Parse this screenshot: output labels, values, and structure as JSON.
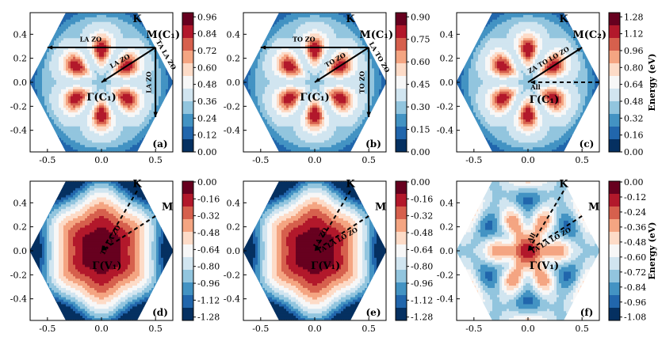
{
  "figure": {
    "description_label": "Six hexagonal Brillouin-zone energy contour panels"
  },
  "colors": {
    "red_dark": "#67001f",
    "red": "#b2182b",
    "red_mid": "#d6604d",
    "red_light": "#f4a582",
    "pale_red": "#fddbc7",
    "white": "#f7f7f7",
    "pale_blue": "#d1e5f0",
    "blue_light": "#92c5de",
    "blue_mid": "#4393c3",
    "blue": "#2166ac",
    "blue_dark": "#053061"
  },
  "chart_data": [
    {
      "type": "heatmap",
      "panel": "(a)",
      "pattern": "six_lobes",
      "cmap": "low_blue_high_red",
      "xlim": [
        -0.66,
        0.66
      ],
      "ylim": [
        -0.58,
        0.58
      ],
      "xticks": [
        "-0.5",
        "0.0",
        "0.5"
      ],
      "xtick_values": [
        -0.5,
        0.0,
        0.5
      ],
      "yticks": [
        "-0.4",
        "-0.2",
        "0.0",
        "0.2",
        "0.4"
      ],
      "ytick_values": [
        -0.4,
        -0.2,
        0.0,
        0.2,
        0.4
      ],
      "colorbar": {
        "ticks": [
          "0.00",
          "0.12",
          "0.24",
          "0.36",
          "0.48",
          "0.60",
          "0.72",
          "0.84",
          "0.96"
        ],
        "label": ""
      },
      "point_labels": [
        {
          "text": "K",
          "x": 0.33,
          "y": 0.5
        },
        {
          "text": "M(C₁)",
          "x": 0.57,
          "y": 0.37
        },
        {
          "text": "Γ(C₁)",
          "x": 0.0,
          "y": -0.15
        }
      ],
      "arrows": [
        {
          "x1": 0.5,
          "y1": 0.29,
          "x2": -0.5,
          "y2": 0.29,
          "dashed": false,
          "label": "LA ZO",
          "lx": -0.1,
          "ly": 0.34,
          "rot": 0
        },
        {
          "x1": 0.5,
          "y1": 0.29,
          "x2": 0.0,
          "y2": 0.0,
          "dashed": false,
          "label": "LA ZO",
          "lx": 0.18,
          "ly": 0.16,
          "rot": -30
        },
        {
          "x1": 0.5,
          "y1": 0.29,
          "x2": 0.5,
          "y2": -0.29,
          "dashed": false,
          "label": "LA ZO",
          "lx": 0.46,
          "ly": 0.0,
          "rot": -90
        },
        {
          "x1": 0.5,
          "y1": 0.29,
          "x2": 0.5,
          "y2": 0.29,
          "dashed": false,
          "label": "TA LA ZO",
          "lx": 0.58,
          "ly": 0.22,
          "rot": 60
        }
      ],
      "panel_label": "(a)"
    },
    {
      "type": "heatmap",
      "panel": "(b)",
      "pattern": "six_lobes",
      "cmap": "low_blue_high_red",
      "xlim": [
        -0.66,
        0.66
      ],
      "ylim": [
        -0.58,
        0.58
      ],
      "xticks": [
        "-0.5",
        "0.0",
        "0.5"
      ],
      "xtick_values": [
        -0.5,
        0.0,
        0.5
      ],
      "yticks": [
        "-0.4",
        "-0.2",
        "0.0",
        "0.2",
        "0.4"
      ],
      "ytick_values": [
        -0.4,
        -0.2,
        0.0,
        0.2,
        0.4
      ],
      "colorbar": {
        "ticks": [
          "0.00",
          "0.15",
          "0.30",
          "0.45",
          "0.60",
          "0.75",
          "0.90"
        ],
        "label": ""
      },
      "point_labels": [
        {
          "text": "K",
          "x": 0.33,
          "y": 0.5
        },
        {
          "text": "M(C₁)",
          "x": 0.57,
          "y": 0.37
        },
        {
          "text": "Γ(C₁)",
          "x": 0.0,
          "y": -0.15
        }
      ],
      "arrows": [
        {
          "x1": 0.5,
          "y1": 0.29,
          "x2": -0.5,
          "y2": 0.29,
          "dashed": false,
          "label": "TO ZO",
          "lx": -0.1,
          "ly": 0.34,
          "rot": 0
        },
        {
          "x1": 0.5,
          "y1": 0.29,
          "x2": 0.0,
          "y2": 0.0,
          "dashed": false,
          "label": "TO ZO",
          "lx": 0.2,
          "ly": 0.17,
          "rot": -30
        },
        {
          "x1": 0.5,
          "y1": 0.29,
          "x2": 0.5,
          "y2": -0.29,
          "dashed": false,
          "label": "TO ZO",
          "lx": 0.46,
          "ly": 0.0,
          "rot": -90
        },
        {
          "x1": 0.5,
          "y1": 0.29,
          "x2": 0.5,
          "y2": 0.29,
          "dashed": false,
          "label": "LA TO ZO",
          "lx": 0.58,
          "ly": 0.2,
          "rot": 60
        }
      ],
      "panel_label": "(b)"
    },
    {
      "type": "heatmap",
      "panel": "(c)",
      "pattern": "six_lobes",
      "cmap": "low_blue_high_red",
      "xlim": [
        -0.66,
        0.66
      ],
      "ylim": [
        -0.58,
        0.58
      ],
      "xticks": [
        "-0.5",
        "0.0",
        "0.5"
      ],
      "xtick_values": [
        -0.5,
        0.0,
        0.5
      ],
      "yticks": [
        "-0.4",
        "-0.2",
        "0.0",
        "0.2",
        "0.4"
      ],
      "ytick_values": [
        -0.4,
        -0.2,
        0.0,
        0.2,
        0.4
      ],
      "colorbar": {
        "ticks": [
          "0.00",
          "0.16",
          "0.32",
          "0.48",
          "0.64",
          "0.80",
          "0.96",
          "1.12",
          "1.28"
        ],
        "label": "Energy (eV)"
      },
      "point_labels": [
        {
          "text": "K",
          "x": 0.33,
          "y": 0.5
        },
        {
          "text": "M(C₂)",
          "x": 0.57,
          "y": 0.37
        },
        {
          "text": "Γ(C₁)",
          "x": 0.15,
          "y": -0.17
        },
        {
          "text": "All",
          "x": 0.07,
          "y": -0.06
        }
      ],
      "arrows": [
        {
          "x1": 0.0,
          "y1": 0.0,
          "x2": 0.5,
          "y2": 0.29,
          "dashed": false,
          "label": "ZA TO LO ZO",
          "lx": 0.2,
          "ly": 0.17,
          "rot": -30
        },
        {
          "x1": 0.66,
          "y1": 0.0,
          "x2": 0.02,
          "y2": 0.0,
          "dashed": true,
          "label": "",
          "lx": 0,
          "ly": 0,
          "rot": 0
        }
      ],
      "panel_label": "(c)"
    },
    {
      "type": "heatmap",
      "panel": "(d)",
      "pattern": "center_hex",
      "cmap": "high_red_low_blue",
      "xlim": [
        -0.66,
        0.66
      ],
      "ylim": [
        -0.58,
        0.58
      ],
      "xticks": [
        "-0.5",
        "0.0",
        "0.5"
      ],
      "xtick_values": [
        -0.5,
        0.0,
        0.5
      ],
      "yticks": [
        "-0.4",
        "-0.2",
        "0.0",
        "0.2",
        "0.4"
      ],
      "ytick_values": [
        -0.4,
        -0.2,
        0.0,
        0.2,
        0.4
      ],
      "colorbar": {
        "ticks": [
          "0.00",
          "-0.16",
          "-0.32",
          "-0.48",
          "-0.64",
          "-0.80",
          "-0.96",
          "-1.12",
          "-1.28"
        ],
        "label": ""
      },
      "point_labels": [
        {
          "text": "K",
          "x": 0.33,
          "y": 0.53
        },
        {
          "text": "M",
          "x": 0.61,
          "y": 0.34
        },
        {
          "text": "Γ(V₁)",
          "x": 0.05,
          "y": -0.15
        }
      ],
      "arrows": [
        {
          "x1": 0.33,
          "y1": 0.5,
          "x2": 0.0,
          "y2": 0.0,
          "dashed": true,
          "label": "TA LA ZO",
          "lx": 0.1,
          "ly": 0.08,
          "rot": -60
        },
        {
          "x1": 0.5,
          "y1": 0.29,
          "x2": 0.0,
          "y2": 0.0,
          "dashed": true,
          "label": "",
          "lx": 0,
          "ly": 0,
          "rot": 0
        }
      ],
      "panel_label": "(d)"
    },
    {
      "type": "heatmap",
      "panel": "(e)",
      "pattern": "center_hex",
      "cmap": "high_red_low_blue",
      "xlim": [
        -0.66,
        0.66
      ],
      "ylim": [
        -0.58,
        0.58
      ],
      "xticks": [
        "-0.5",
        "0.0",
        "0.5"
      ],
      "xtick_values": [
        -0.5,
        0.0,
        0.5
      ],
      "yticks": [
        "-0.4",
        "-0.2",
        "0.0",
        "0.2",
        "0.4"
      ],
      "ytick_values": [
        -0.4,
        -0.2,
        0.0,
        0.2,
        0.4
      ],
      "colorbar": {
        "ticks": [
          "0.00",
          "-0.16",
          "-0.32",
          "-0.48",
          "-0.64",
          "-0.80",
          "-0.96",
          "-1.12",
          "-1.28"
        ],
        "label": ""
      },
      "point_labels": [
        {
          "text": "K",
          "x": 0.33,
          "y": 0.53
        },
        {
          "text": "M",
          "x": 0.61,
          "y": 0.34
        },
        {
          "text": "Γ(V₁)",
          "x": 0.1,
          "y": -0.15
        }
      ],
      "arrows": [
        {
          "x1": 0.33,
          "y1": 0.5,
          "x2": 0.0,
          "y2": 0.0,
          "dashed": true,
          "label": "LA ZO",
          "lx": 0.07,
          "ly": 0.1,
          "rot": -60
        },
        {
          "x1": 0.5,
          "y1": 0.29,
          "x2": 0.0,
          "y2": 0.0,
          "dashed": true,
          "label": "TA LA LO ZO",
          "lx": 0.22,
          "ly": 0.07,
          "rot": -30
        }
      ],
      "panel_label": "(e)"
    },
    {
      "type": "heatmap",
      "panel": "(f)",
      "pattern": "petals",
      "cmap": "high_red_low_blue",
      "xlim": [
        -0.66,
        0.66
      ],
      "ylim": [
        -0.58,
        0.58
      ],
      "xticks": [
        "-0.5",
        "0.0",
        "0.5"
      ],
      "xtick_values": [
        -0.5,
        0.0,
        0.5
      ],
      "yticks": [
        "-0.4",
        "-0.2",
        "0.0",
        "0.2",
        "0.4"
      ],
      "ytick_values": [
        -0.4,
        -0.2,
        0.0,
        0.2,
        0.4
      ],
      "colorbar": {
        "ticks": [
          "0.00",
          "-0.12",
          "-0.24",
          "-0.36",
          "-0.48",
          "-0.60",
          "-0.72",
          "-0.84",
          "-0.96",
          "-1.08"
        ],
        "label": "Energy (eV)"
      },
      "point_labels": [
        {
          "text": "K",
          "x": 0.33,
          "y": 0.53
        },
        {
          "text": "M",
          "x": 0.61,
          "y": 0.34
        },
        {
          "text": "Γ(V₁)",
          "x": 0.15,
          "y": -0.15
        }
      ],
      "arrows": [
        {
          "x1": 0.33,
          "y1": 0.5,
          "x2": 0.0,
          "y2": 0.0,
          "dashed": true,
          "label": "All",
          "lx": 0.05,
          "ly": 0.1,
          "rot": -60
        },
        {
          "x1": 0.5,
          "y1": 0.29,
          "x2": 0.0,
          "y2": 0.0,
          "dashed": true,
          "label": "TA LA LO ZO",
          "lx": 0.22,
          "ly": 0.07,
          "rot": -30
        }
      ],
      "panel_label": "(f)"
    }
  ]
}
